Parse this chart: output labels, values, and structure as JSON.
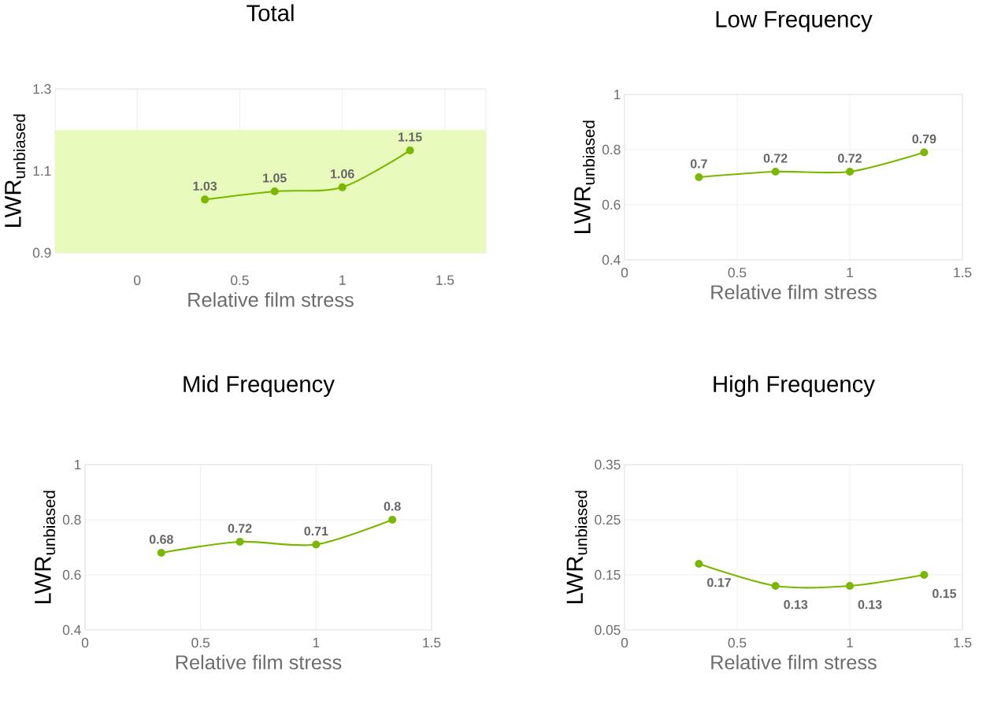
{
  "chart_data": [
    {
      "type": "line",
      "title": "Total",
      "xlabel": "Relative film stress",
      "ylabel": "LWR$_{unbiased}$",
      "x": [
        0.33,
        0.67,
        1,
        1.33
      ],
      "values": [
        1.03,
        1.05,
        1.06,
        1.15
      ],
      "color": "#7ab800",
      "marker": "circle",
      "xlim": [
        -0.4,
        1.7
      ],
      "xticks": [
        0,
        0.5,
        1,
        1.5
      ],
      "ylim": [
        0.9,
        1.3
      ],
      "yticks": [
        0.9,
        1.1,
        1.3
      ],
      "grid": true,
      "data_labels": true,
      "bands": [
        {
          "axis": "y",
          "from": 0.9,
          "to": 1.2,
          "color": "#e8fbbd"
        }
      ]
    },
    {
      "type": "line",
      "title": "Low Frequency",
      "xlabel": "Relative film stress",
      "ylabel": "LWR$_{unbiased}$",
      "x": [
        0.33,
        0.67,
        1,
        1.33
      ],
      "values": [
        0.7,
        0.72,
        0.72,
        0.79
      ],
      "color": "#7ab800",
      "marker": "circle",
      "xlim": [
        0,
        1.5
      ],
      "xticks": [
        0,
        0.5,
        1,
        1.5
      ],
      "ylim": [
        0.4,
        1
      ],
      "yticks": [
        0.4,
        0.6,
        0.8,
        1
      ],
      "grid": true,
      "data_labels": true
    },
    {
      "type": "line",
      "title": "Mid Frequency",
      "xlabel": "Relative film stress",
      "ylabel": "LWR$_{unbiased}$",
      "x": [
        0.33,
        0.67,
        1,
        1.33
      ],
      "values": [
        0.68,
        0.72,
        0.71,
        0.8
      ],
      "color": "#7ab800",
      "marker": "circle",
      "xlim": [
        0,
        1.5
      ],
      "xticks": [
        0,
        0.5,
        1,
        1.5
      ],
      "ylim": [
        0.4,
        1
      ],
      "yticks": [
        0.4,
        0.6,
        0.8,
        1
      ],
      "grid": true,
      "data_labels": true
    },
    {
      "type": "line",
      "title": "High Frequency",
      "xlabel": "Relative film stress",
      "ylabel": "LWR$_{unbiased}$",
      "x": [
        0.33,
        0.67,
        1,
        1.33
      ],
      "values": [
        0.17,
        0.13,
        0.13,
        0.15
      ],
      "color": "#7ab800",
      "marker": "circle",
      "xlim": [
        0,
        1.5
      ],
      "xticks": [
        0,
        0.5,
        1,
        1.5
      ],
      "ylim": [
        0.05,
        0.35
      ],
      "yticks": [
        0.05,
        0.15,
        0.25,
        0.35
      ],
      "grid": true,
      "data_labels": true
    }
  ]
}
